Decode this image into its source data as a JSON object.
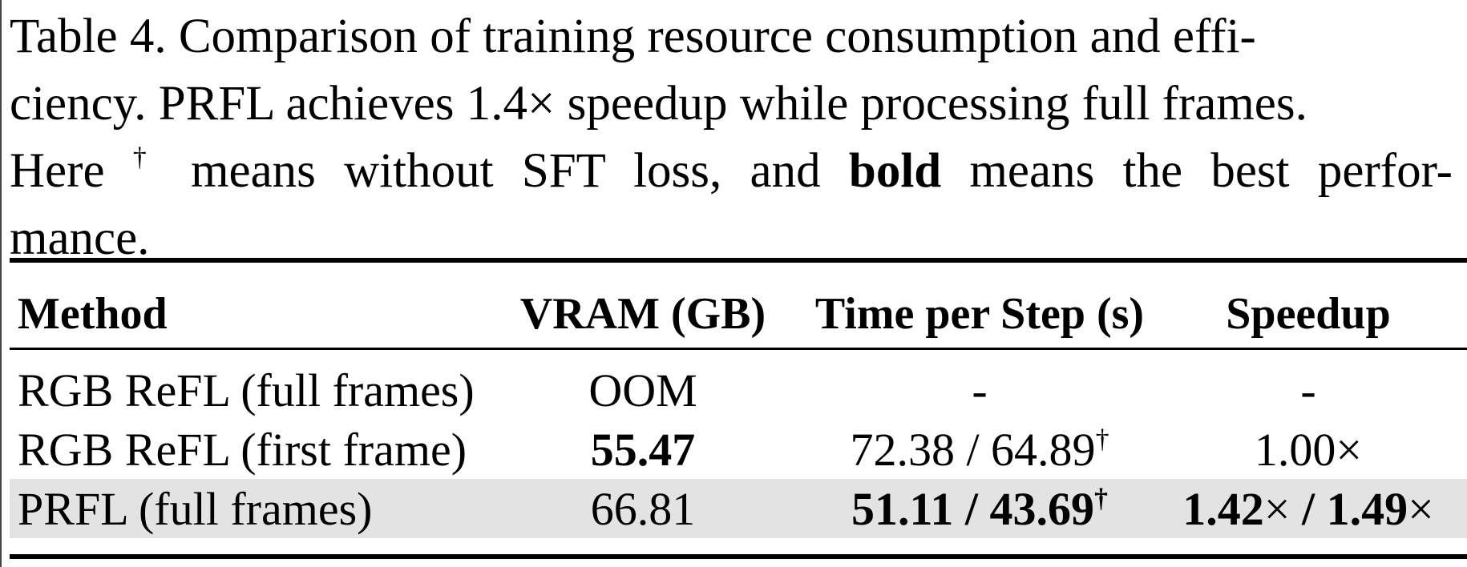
{
  "caption": {
    "line1": "Table 4.  Comparison of training resource consumption and effi-",
    "line2": "ciency. PRFL achieves 1.4× speedup while processing full frames.",
    "line3_a": "Here ",
    "line3_dagger": "†",
    "line3_b": " means without SFT loss, and ",
    "line3_bold": "bold",
    "line3_c": " means the best perfor-",
    "line4": "mance."
  },
  "table": {
    "headers": {
      "method": "Method",
      "vram": "VRAM (GB)",
      "time": "Time per Step (s)",
      "speedup": "Speedup"
    },
    "rows": [
      {
        "method": "RGB ReFL (full frames)",
        "vram": "OOM",
        "time": "-",
        "speedup": "-"
      },
      {
        "method": "RGB ReFL (first frame)",
        "vram": "55.47",
        "time_a": "72.38 / 64.89",
        "time_dagger": "†",
        "speedup": "1.00×"
      },
      {
        "method": "PRFL (full frames)",
        "vram": "66.81",
        "time_a": "51.11 / 43.69",
        "time_dagger": "†",
        "speedup_a": "1.42",
        "speedup_x1": "×",
        "speedup_sep": " / ",
        "speedup_b": "1.49",
        "speedup_x2": "×"
      }
    ],
    "row_shade_color": "#e3e3e3"
  }
}
